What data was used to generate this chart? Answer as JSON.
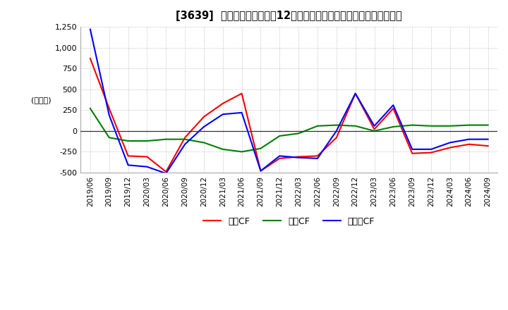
{
  "title": "[3639]  キャッシュフローの12か月移動合計の対前年同期増減額の推移",
  "ylabel": "(百万円)",
  "ylim": [
    -500,
    1250
  ],
  "yticks": [
    -500,
    -250,
    0,
    250,
    500,
    750,
    1000,
    1250
  ],
  "legend_labels": [
    "営業CF",
    "投資CF",
    "フリーCF"
  ],
  "colors": {
    "eigyo": "#ff0000",
    "toshi": "#008000",
    "free": "#0000ff"
  },
  "x_labels": [
    "2019/06",
    "2019/09",
    "2019/12",
    "2020/03",
    "2020/06",
    "2020/09",
    "2020/12",
    "2021/03",
    "2021/06",
    "2021/09",
    "2021/12",
    "2022/03",
    "2022/06",
    "2022/09",
    "2022/12",
    "2023/03",
    "2023/06",
    "2023/09",
    "2023/12",
    "2024/03",
    "2024/06",
    "2024/09"
  ],
  "eigyo_cf": [
    870,
    270,
    -300,
    -310,
    -490,
    -80,
    170,
    330,
    450,
    -480,
    -330,
    -310,
    -300,
    -80,
    450,
    20,
    270,
    -270,
    -260,
    -200,
    -160,
    -180
  ],
  "toshi_cf": [
    270,
    -80,
    -120,
    -120,
    -100,
    -100,
    -140,
    -220,
    -250,
    -210,
    -60,
    -30,
    60,
    70,
    60,
    0,
    50,
    70,
    60,
    60,
    70,
    70
  ],
  "free_cf": [
    1220,
    190,
    -410,
    -430,
    -510,
    -160,
    50,
    200,
    220,
    -480,
    -300,
    -320,
    -330,
    0,
    450,
    60,
    310,
    -220,
    -220,
    -140,
    -100,
    -100
  ],
  "background_color": "#ffffff",
  "grid_color": "#b0b0b0",
  "grid_style": ":"
}
